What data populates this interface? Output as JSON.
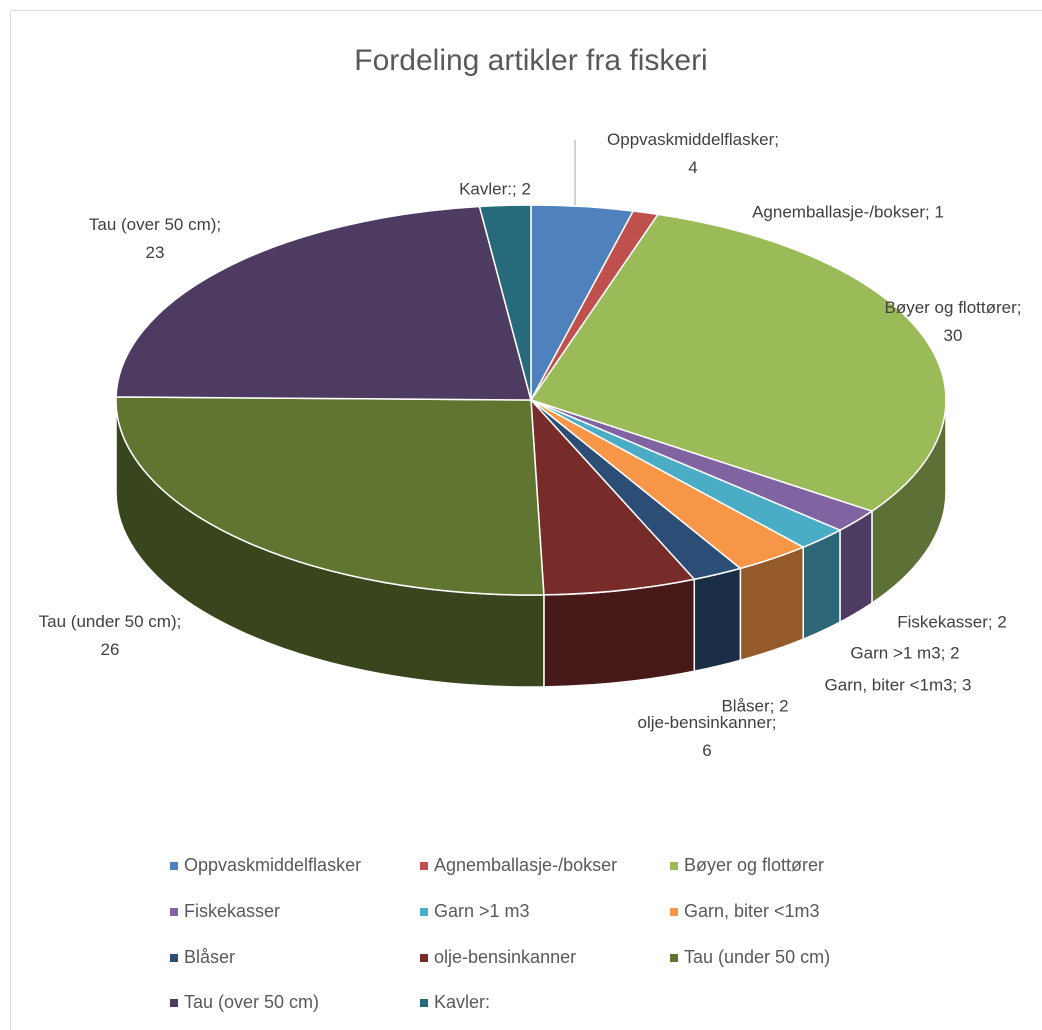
{
  "chart_data": {
    "type": "pie3d",
    "title": "Fordeling artikler fra fiskeri",
    "categories": [
      "Oppvaskmiddelflasker",
      "Agnemballasje-/bokser",
      "Bøyer og flottører",
      "Fiskekasser",
      "Garn >1 m3",
      "Garn, biter <1m3",
      "Blåser",
      "olje-bensinkanner",
      "Tau (under 50 cm)",
      "Tau (over 50 cm)",
      "Kavler:"
    ],
    "values": [
      4,
      1,
      30,
      2,
      2,
      3,
      2,
      6,
      26,
      23,
      2
    ],
    "value_labels": [
      "Oppvaskmiddelflasker; 4",
      "Agnemballasje-/bokser; 1",
      "Bøyer og flottører; 30",
      "Fiskekasser; 2",
      "Garn >1 m3; 2",
      "Garn, biter <1m3; 3",
      "Blåser; 2",
      "olje-bensinkanner; 6",
      "Tau (under 50 cm); 26",
      "Tau (over 50 cm); 23",
      "Kavler:; 2"
    ],
    "colors": [
      "#4f81bd",
      "#c0504d",
      "#9bbb59",
      "#8064a2",
      "#4bacc6",
      "#f79646",
      "#2c4d75",
      "#772c2a",
      "#5f7530",
      "#4d3b62",
      "#276a7c"
    ],
    "legend": "bottom"
  }
}
